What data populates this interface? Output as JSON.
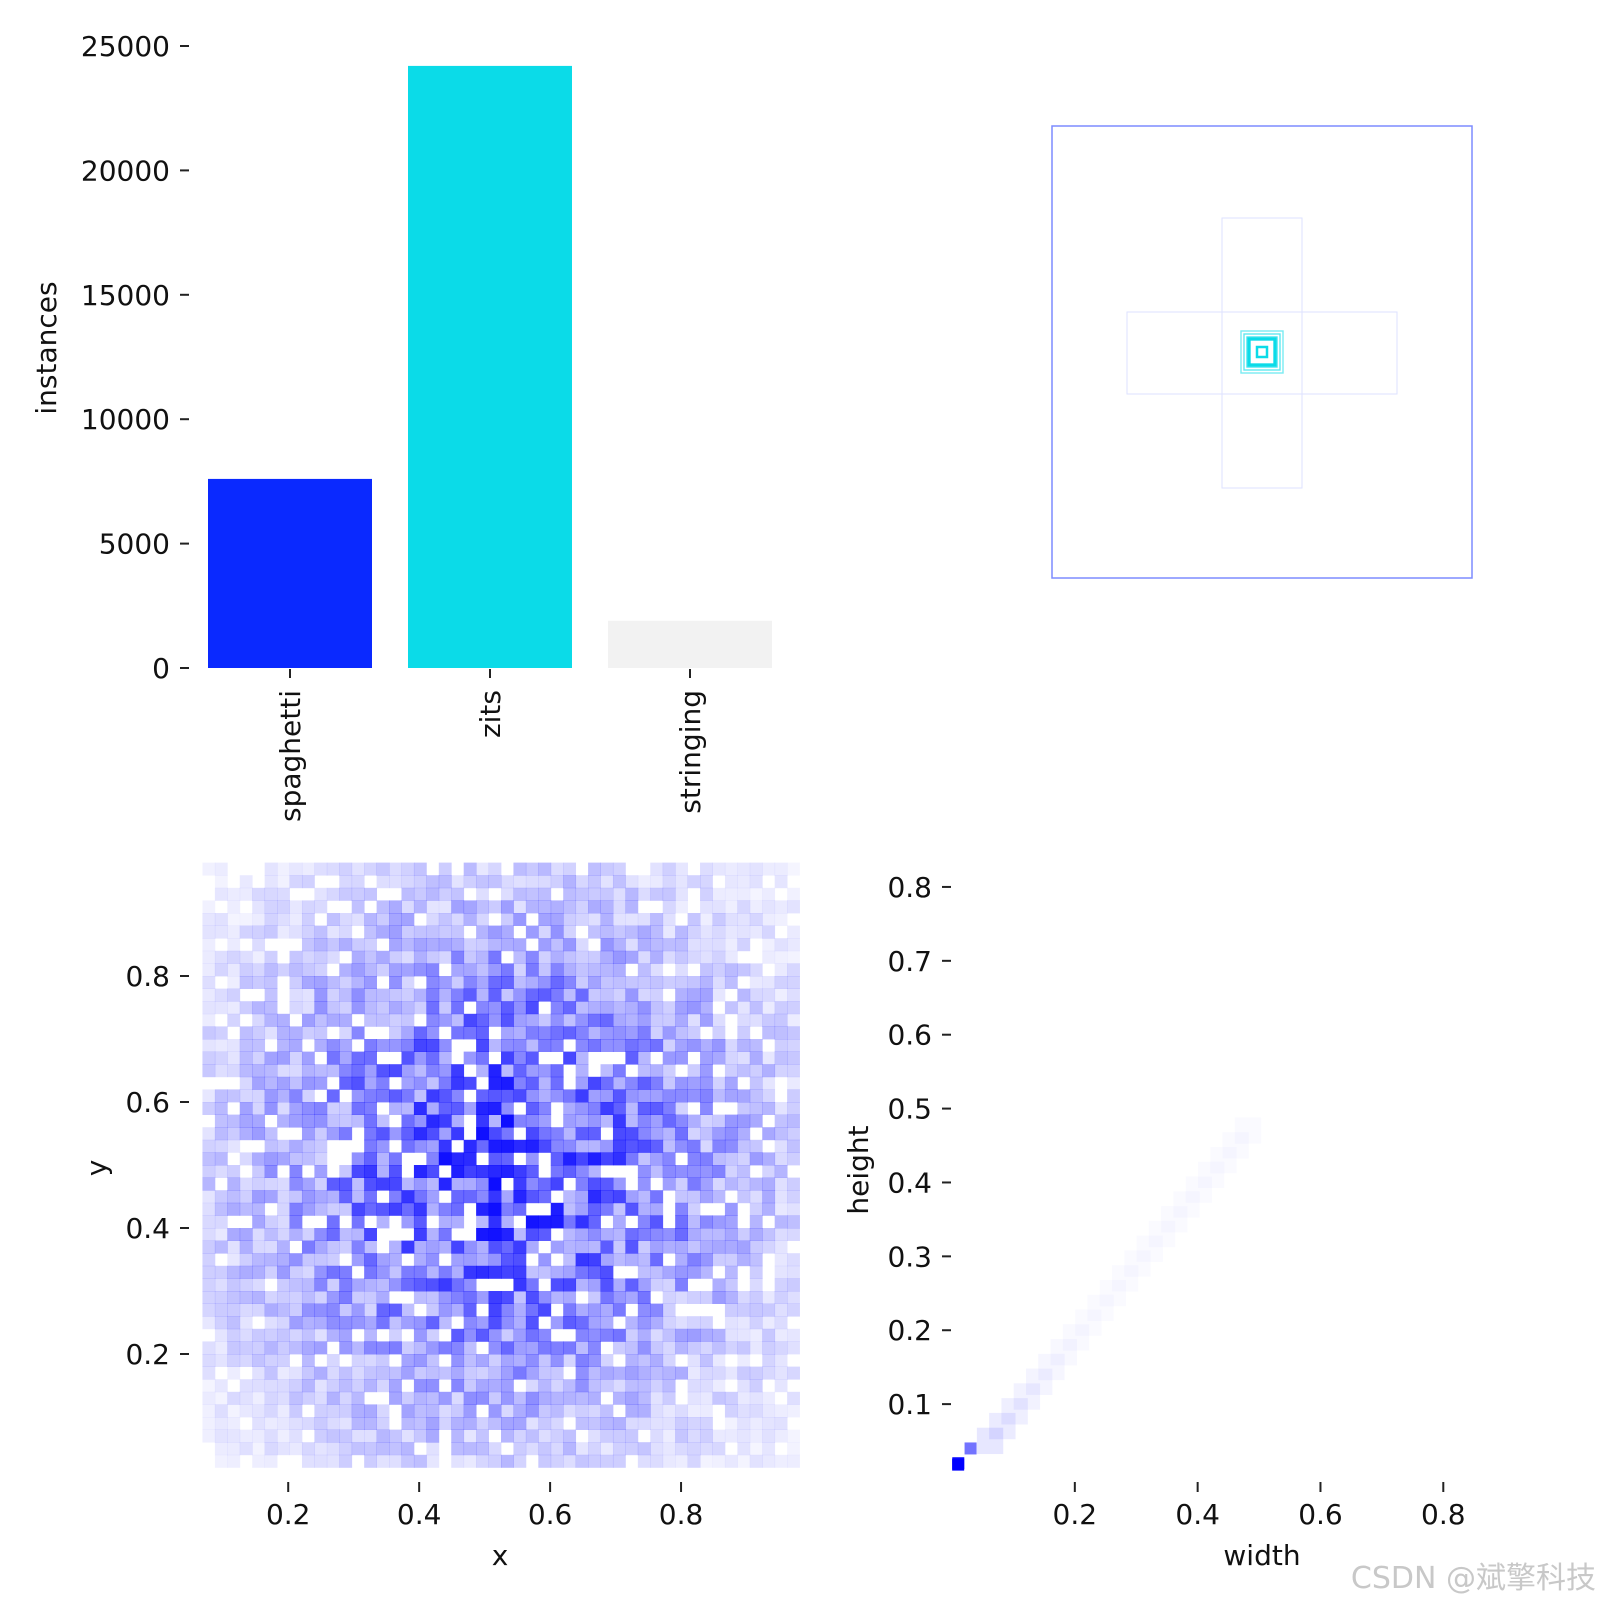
{
  "chart_data": [
    {
      "type": "bar",
      "categories": [
        "spaghetti",
        "zits",
        "stringing"
      ],
      "values": [
        7600,
        24200,
        1900
      ],
      "colors": [
        "#0a29ff",
        "#0bdbe8",
        "#f2f2f2"
      ],
      "xlabel": "",
      "ylabel": "instances",
      "ylim": [
        0,
        25000
      ],
      "yticks": [
        0,
        5000,
        10000,
        15000,
        20000,
        25000
      ]
    },
    {
      "type": "diagram",
      "description_hidden": "",
      "colors": {
        "frame": "#7d8cff",
        "center": "#0bdbe8",
        "faint": "#dde2ff"
      }
    },
    {
      "type": "heatmap",
      "xlabel": "x",
      "ylabel": "y",
      "xlim": [
        0.05,
        1.0
      ],
      "ylim": [
        0.0,
        1.0
      ],
      "xticks": [
        0.2,
        0.4,
        0.6,
        0.8
      ],
      "yticks": [
        0.2,
        0.4,
        0.6,
        0.8
      ],
      "bins": 50,
      "color": "#0000ff",
      "center": [
        0.5,
        0.5
      ]
    },
    {
      "type": "heatmap",
      "xlabel": "width",
      "ylabel": "height",
      "xlim": [
        0.0,
        0.85
      ],
      "ylim": [
        0.0,
        0.85
      ],
      "xticks": [
        0.2,
        0.4,
        0.6,
        0.8
      ],
      "yticks": [
        0.1,
        0.2,
        0.3,
        0.4,
        0.5,
        0.6,
        0.7,
        0.8
      ],
      "color": "#0000ff",
      "peak": [
        0.01,
        0.01
      ]
    }
  ],
  "watermark": "CSDN @斌擎科技"
}
